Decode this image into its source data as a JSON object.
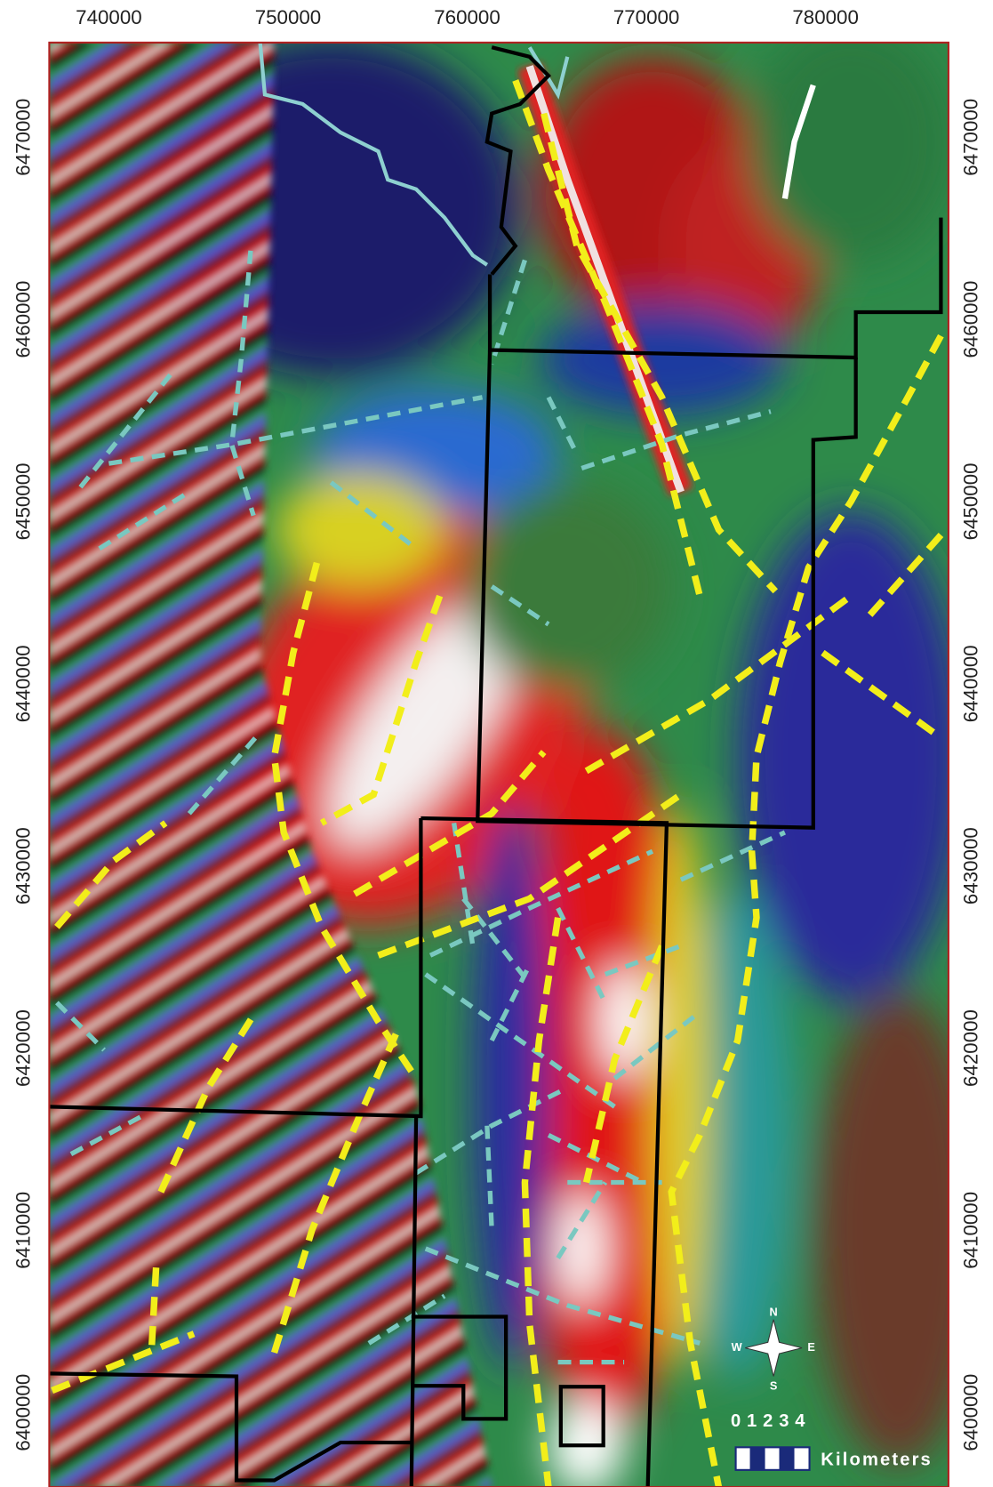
{
  "x_axis": {
    "labels": [
      740000,
      750000,
      760000,
      770000,
      780000
    ]
  },
  "y_axis": {
    "labels": [
      6470000,
      6460000,
      6450000,
      6440000,
      6430000,
      6420000,
      6410000,
      6400000
    ]
  },
  "compass": {
    "north": "N",
    "south": "S",
    "east": "E",
    "west": "W"
  },
  "scale_bar": {
    "ticks": [
      0,
      1,
      2,
      3,
      4
    ],
    "unit": "Kilometers"
  }
}
